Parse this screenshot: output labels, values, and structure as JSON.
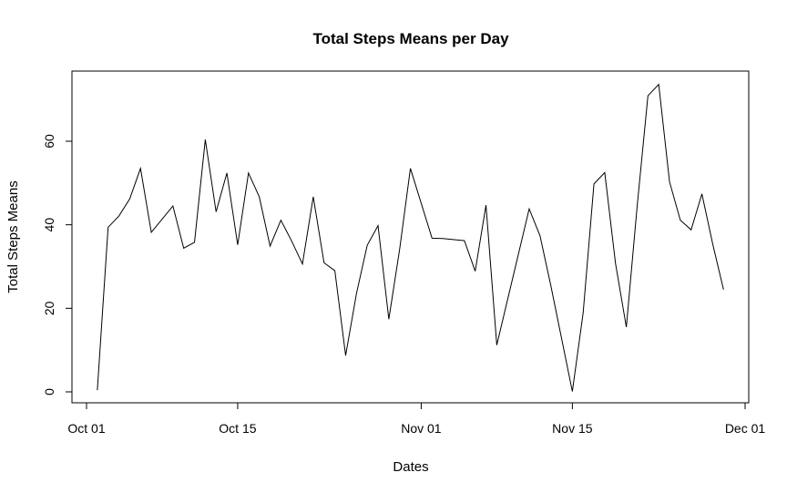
{
  "chart_data": {
    "type": "line",
    "title": "Total Steps Means per Day",
    "xlabel": "Dates",
    "ylabel": "Total Steps Means",
    "xlim": [
      "2012-09-30",
      "2012-12-01"
    ],
    "ylim": [
      0,
      75
    ],
    "x_ticks": [
      {
        "date": "2012-10-01",
        "label": "Oct 01"
      },
      {
        "date": "2012-10-15",
        "label": "Oct 15"
      },
      {
        "date": "2012-11-01",
        "label": "Nov 01"
      },
      {
        "date": "2012-11-15",
        "label": "Nov 15"
      },
      {
        "date": "2012-12-01",
        "label": "Dec 01"
      }
    ],
    "y_ticks": [
      0,
      20,
      40,
      60
    ],
    "grid": false,
    "legend": "none",
    "line_color": "#000000",
    "series": [
      {
        "x": [
          "2012-10-02",
          "2012-10-03",
          "2012-10-04",
          "2012-10-05",
          "2012-10-06",
          "2012-10-07",
          "2012-10-09",
          "2012-10-10",
          "2012-10-11",
          "2012-10-12",
          "2012-10-13",
          "2012-10-14",
          "2012-10-15",
          "2012-10-16",
          "2012-10-17",
          "2012-10-18",
          "2012-10-19",
          "2012-10-20",
          "2012-10-21",
          "2012-10-22",
          "2012-10-23",
          "2012-10-24",
          "2012-10-25",
          "2012-10-26",
          "2012-10-27",
          "2012-10-28",
          "2012-10-29",
          "2012-10-30",
          "2012-10-31",
          "2012-11-02",
          "2012-11-03",
          "2012-11-05",
          "2012-11-06",
          "2012-11-07",
          "2012-11-08",
          "2012-11-11",
          "2012-11-12",
          "2012-11-13",
          "2012-11-15",
          "2012-11-16",
          "2012-11-17",
          "2012-11-18",
          "2012-11-19",
          "2012-11-20",
          "2012-11-21",
          "2012-11-22",
          "2012-11-23",
          "2012-11-24",
          "2012-11-25",
          "2012-11-26",
          "2012-11-27",
          "2012-11-28",
          "2012-11-29"
        ],
        "y": [
          0.4,
          39.4,
          42.1,
          46.2,
          53.5,
          38.2,
          44.5,
          34.4,
          35.8,
          60.4,
          43.1,
          52.4,
          35.2,
          52.4,
          46.7,
          34.9,
          41.1,
          36.1,
          30.6,
          46.7,
          30.9,
          29.0,
          8.7,
          23.5,
          35.1,
          39.8,
          17.4,
          34.1,
          53.5,
          36.8,
          36.7,
          36.2,
          28.9,
          44.7,
          11.2,
          43.8,
          37.4,
          25.5,
          0.1,
          18.9,
          49.8,
          52.5,
          30.7,
          15.5,
          44.4,
          70.9,
          73.6,
          50.3,
          41.1,
          38.8,
          47.4,
          35.4,
          24.5
        ]
      }
    ]
  }
}
